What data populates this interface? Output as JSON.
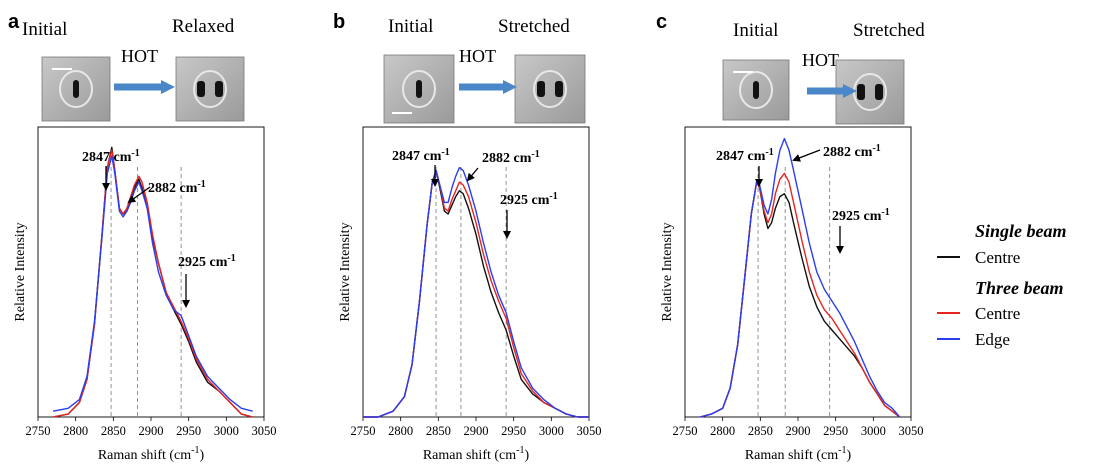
{
  "panels": [
    {
      "letter": "a",
      "initial_label": "Initial",
      "final_label": "Relaxed",
      "hot_label": "HOT",
      "ylabel": "Relative Intensity",
      "xlabel_main": "Raman shift (cm",
      "xlabel_sup": "-1",
      "xlabel_end": ")",
      "peaks": [
        {
          "label": "2847 cm",
          "sup": "-1",
          "x": 2847
        },
        {
          "label": "2882 cm",
          "sup": "-1",
          "x": 2882
        },
        {
          "label": "2925 cm",
          "sup": "-1",
          "x": 2940
        }
      ]
    },
    {
      "letter": "b",
      "initial_label": "Initial",
      "final_label": "Stretched",
      "hot_label": "HOT",
      "ylabel": "Relative Intensity",
      "xlabel_main": "Raman shift (cm",
      "xlabel_sup": "-1",
      "xlabel_end": ")",
      "peaks": [
        {
          "label": "2847 cm",
          "sup": "-1",
          "x": 2847
        },
        {
          "label": "2882 cm",
          "sup": "-1",
          "x": 2880
        },
        {
          "label": "2925 cm",
          "sup": "-1",
          "x": 2940
        }
      ]
    },
    {
      "letter": "c",
      "initial_label": "Initial",
      "final_label": "Stretched",
      "hot_label": "HOT",
      "ylabel": "Relative Intensity",
      "xlabel_main": "Raman shift (cm",
      "xlabel_sup": "-1",
      "xlabel_end": ")",
      "peaks": [
        {
          "label": "2847 cm",
          "sup": "-1",
          "x": 2847
        },
        {
          "label": "2882 cm",
          "sup": "-1",
          "x": 2883
        },
        {
          "label": "2925 cm",
          "sup": "-1",
          "x": 2942
        }
      ]
    }
  ],
  "legend": {
    "group1_title": "Single beam",
    "group1_items": [
      {
        "name": "Centre",
        "color": "#111111"
      }
    ],
    "group2_title": "Three beam",
    "group2_items": [
      {
        "name": "Centre",
        "color": "#e8241f"
      },
      {
        "name": "Edge",
        "color": "#2b3df0"
      }
    ]
  },
  "chart_data": [
    {
      "type": "line",
      "xlim": [
        2750,
        3050
      ],
      "ylim": [
        0,
        1
      ],
      "xticks": [
        2750,
        2800,
        2850,
        2900,
        2950,
        3000,
        3050
      ],
      "xlabel": "Raman shift (cm-1)",
      "ylabel": "Relative Intensity",
      "series": [
        {
          "name": "Single beam Centre",
          "color": "#111111",
          "x": [
            2770,
            2790,
            2805,
            2815,
            2825,
            2835,
            2842,
            2848,
            2852,
            2858,
            2863,
            2868,
            2873,
            2878,
            2884,
            2888,
            2895,
            2902,
            2910,
            2920,
            2930,
            2940,
            2950,
            2960,
            2975,
            2990,
            3005,
            3020,
            3035
          ],
          "y": [
            0.0,
            0.01,
            0.05,
            0.13,
            0.32,
            0.63,
            0.86,
            0.93,
            0.85,
            0.72,
            0.7,
            0.71,
            0.75,
            0.79,
            0.82,
            0.79,
            0.72,
            0.62,
            0.53,
            0.43,
            0.37,
            0.32,
            0.26,
            0.19,
            0.12,
            0.09,
            0.05,
            0.01,
            0.0
          ]
        },
        {
          "name": "Three beam Centre",
          "color": "#e8241f",
          "x": [
            2770,
            2790,
            2805,
            2815,
            2825,
            2835,
            2842,
            2848,
            2852,
            2858,
            2863,
            2868,
            2873,
            2878,
            2884,
            2888,
            2895,
            2902,
            2910,
            2920,
            2930,
            2940,
            2950,
            2960,
            2975,
            2990,
            3005,
            3020,
            3035
          ],
          "y": [
            0.0,
            0.01,
            0.05,
            0.13,
            0.32,
            0.63,
            0.86,
            0.92,
            0.85,
            0.72,
            0.7,
            0.72,
            0.76,
            0.8,
            0.83,
            0.81,
            0.74,
            0.63,
            0.53,
            0.43,
            0.38,
            0.33,
            0.27,
            0.2,
            0.13,
            0.09,
            0.05,
            0.01,
            0.0
          ]
        },
        {
          "name": "Three beam Edge",
          "color": "#2b3df0",
          "x": [
            2770,
            2790,
            2805,
            2815,
            2825,
            2835,
            2842,
            2848,
            2852,
            2858,
            2863,
            2868,
            2873,
            2878,
            2884,
            2888,
            2895,
            2902,
            2910,
            2920,
            2930,
            2940,
            2950,
            2960,
            2975,
            2990,
            3005,
            3020,
            3035
          ],
          "y": [
            0.02,
            0.03,
            0.06,
            0.14,
            0.33,
            0.62,
            0.84,
            0.9,
            0.84,
            0.71,
            0.69,
            0.71,
            0.74,
            0.78,
            0.81,
            0.78,
            0.72,
            0.6,
            0.5,
            0.42,
            0.37,
            0.35,
            0.28,
            0.21,
            0.14,
            0.1,
            0.06,
            0.03,
            0.02
          ]
        }
      ]
    },
    {
      "type": "line",
      "xlim": [
        2750,
        3050
      ],
      "ylim": [
        0,
        1
      ],
      "xticks": [
        2750,
        2800,
        2850,
        2900,
        2950,
        3000,
        3050
      ],
      "xlabel": "Raman shift (cm-1)",
      "ylabel": "Relative Intensity",
      "series": [
        {
          "name": "Single beam Centre",
          "color": "#111111",
          "x": [
            2750,
            2770,
            2790,
            2805,
            2815,
            2825,
            2835,
            2842,
            2847,
            2852,
            2858,
            2863,
            2868,
            2873,
            2878,
            2883,
            2890,
            2900,
            2910,
            2920,
            2930,
            2940,
            2950,
            2960,
            2975,
            2990,
            3005,
            3020,
            3035,
            3050
          ],
          "y": [
            0.0,
            0.0,
            0.02,
            0.07,
            0.18,
            0.4,
            0.66,
            0.81,
            0.85,
            0.79,
            0.71,
            0.7,
            0.73,
            0.76,
            0.78,
            0.77,
            0.72,
            0.63,
            0.52,
            0.43,
            0.36,
            0.3,
            0.21,
            0.13,
            0.08,
            0.05,
            0.03,
            0.01,
            0.0,
            0.0
          ]
        },
        {
          "name": "Three beam Centre",
          "color": "#e8241f",
          "x": [
            2750,
            2770,
            2790,
            2805,
            2815,
            2825,
            2835,
            2842,
            2847,
            2852,
            2858,
            2863,
            2868,
            2873,
            2878,
            2883,
            2890,
            2900,
            2910,
            2920,
            2930,
            2940,
            2950,
            2960,
            2975,
            2990,
            3005,
            3020,
            3035,
            3050
          ],
          "y": [
            0.0,
            0.0,
            0.02,
            0.07,
            0.18,
            0.4,
            0.66,
            0.81,
            0.85,
            0.8,
            0.72,
            0.71,
            0.75,
            0.78,
            0.81,
            0.8,
            0.76,
            0.67,
            0.56,
            0.47,
            0.4,
            0.34,
            0.24,
            0.15,
            0.09,
            0.05,
            0.03,
            0.01,
            0.0,
            0.0
          ]
        },
        {
          "name": "Three beam Edge",
          "color": "#2b3df0",
          "x": [
            2750,
            2770,
            2790,
            2805,
            2815,
            2825,
            2835,
            2842,
            2847,
            2852,
            2858,
            2863,
            2868,
            2873,
            2878,
            2883,
            2890,
            2900,
            2910,
            2920,
            2930,
            2940,
            2950,
            2960,
            2975,
            2990,
            3005,
            3020,
            3035,
            3050
          ],
          "y": [
            0.0,
            0.0,
            0.02,
            0.07,
            0.18,
            0.4,
            0.66,
            0.81,
            0.85,
            0.8,
            0.74,
            0.74,
            0.79,
            0.83,
            0.86,
            0.85,
            0.8,
            0.71,
            0.6,
            0.5,
            0.42,
            0.36,
            0.26,
            0.17,
            0.1,
            0.06,
            0.03,
            0.01,
            0.0,
            0.0
          ]
        }
      ]
    },
    {
      "type": "line",
      "xlim": [
        2750,
        3050
      ],
      "ylim": [
        0,
        1
      ],
      "xticks": [
        2750,
        2800,
        2850,
        2900,
        2950,
        3000,
        3050
      ],
      "xlabel": "Raman shift (cm-1)",
      "ylabel": "Relative Intensity",
      "series": [
        {
          "name": "Single beam Centre",
          "color": "#111111",
          "x": [
            2770,
            2785,
            2800,
            2810,
            2820,
            2830,
            2838,
            2845,
            2849,
            2855,
            2860,
            2865,
            2870,
            2876,
            2882,
            2888,
            2895,
            2905,
            2915,
            2925,
            2935,
            2945,
            2955,
            2965,
            2975,
            2985,
            2995,
            3005,
            3015,
            3025,
            3035
          ],
          "y": [
            0.0,
            0.01,
            0.03,
            0.1,
            0.25,
            0.5,
            0.7,
            0.81,
            0.79,
            0.7,
            0.65,
            0.67,
            0.72,
            0.76,
            0.77,
            0.74,
            0.66,
            0.55,
            0.45,
            0.38,
            0.33,
            0.3,
            0.27,
            0.24,
            0.21,
            0.17,
            0.12,
            0.08,
            0.04,
            0.02,
            0.0
          ]
        },
        {
          "name": "Three beam Centre",
          "color": "#e8241f",
          "x": [
            2770,
            2785,
            2800,
            2810,
            2820,
            2830,
            2838,
            2845,
            2849,
            2855,
            2860,
            2865,
            2870,
            2876,
            2882,
            2888,
            2895,
            2905,
            2915,
            2925,
            2935,
            2945,
            2955,
            2965,
            2975,
            2985,
            2995,
            3005,
            3015,
            3025,
            3035
          ],
          "y": [
            0.0,
            0.01,
            0.03,
            0.1,
            0.25,
            0.5,
            0.7,
            0.81,
            0.79,
            0.71,
            0.67,
            0.7,
            0.77,
            0.82,
            0.84,
            0.81,
            0.73,
            0.61,
            0.5,
            0.42,
            0.37,
            0.34,
            0.3,
            0.26,
            0.22,
            0.17,
            0.12,
            0.08,
            0.04,
            0.02,
            0.0
          ]
        },
        {
          "name": "Three beam Edge",
          "color": "#2b3df0",
          "x": [
            2770,
            2785,
            2800,
            2810,
            2820,
            2830,
            2838,
            2845,
            2849,
            2855,
            2860,
            2865,
            2870,
            2876,
            2882,
            2888,
            2895,
            2905,
            2915,
            2925,
            2935,
            2945,
            2955,
            2965,
            2975,
            2985,
            2995,
            3005,
            3015,
            3025,
            3035
          ],
          "y": [
            0.0,
            0.01,
            0.03,
            0.1,
            0.25,
            0.5,
            0.7,
            0.81,
            0.8,
            0.73,
            0.7,
            0.75,
            0.84,
            0.92,
            0.96,
            0.92,
            0.84,
            0.72,
            0.6,
            0.5,
            0.44,
            0.4,
            0.36,
            0.31,
            0.26,
            0.2,
            0.14,
            0.09,
            0.05,
            0.03,
            0.0
          ]
        }
      ]
    }
  ]
}
